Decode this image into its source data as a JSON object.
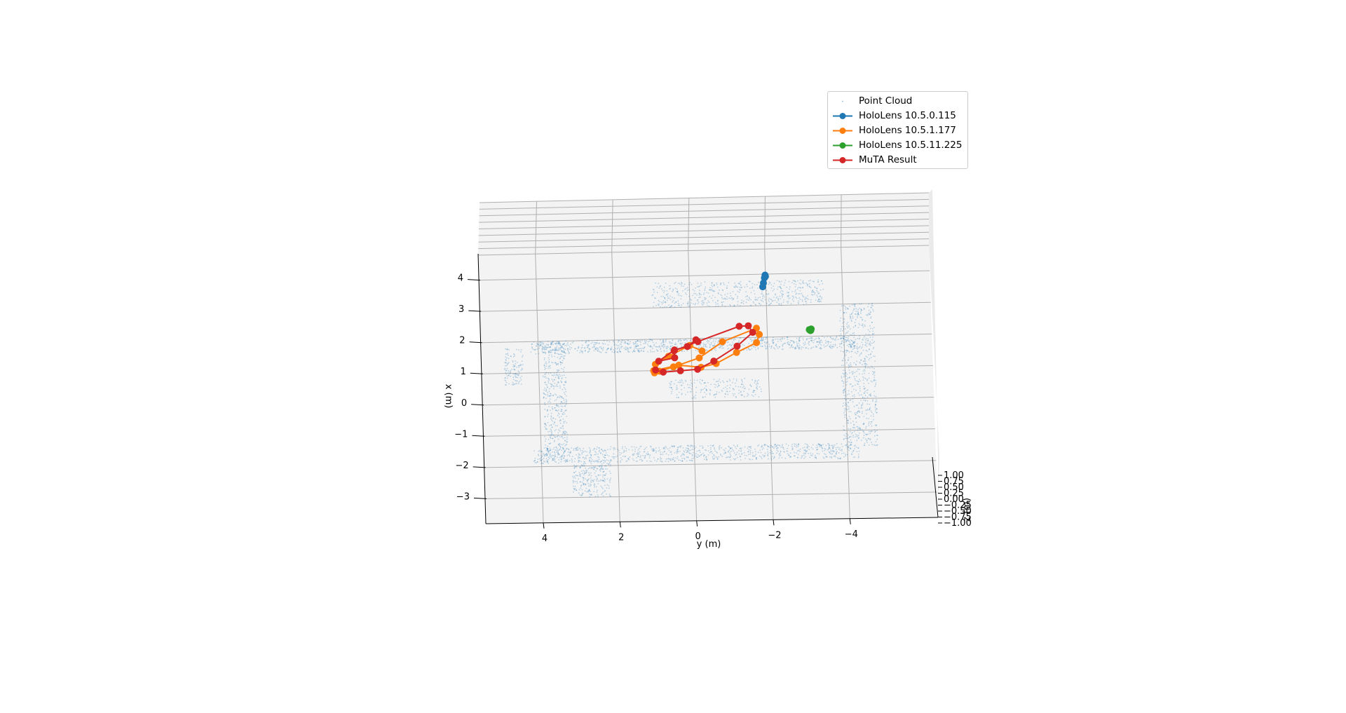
{
  "chart_data": {
    "type": "scatter",
    "projection": "3d",
    "xlabel": "y (m)",
    "ylabel": "x (m)",
    "zlabel": "z (m)",
    "x_ticks": [
      "4",
      "2",
      "0",
      "−2",
      "−4"
    ],
    "y_ticks": [
      "−3",
      "−2",
      "−1",
      "0",
      "1",
      "2",
      "3",
      "4"
    ],
    "z_ticks": [
      "1.00",
      "0.75",
      "0.50",
      "0.25",
      "0.00",
      "−0.25",
      "−0.50",
      "−0.75",
      "−1.00"
    ],
    "xlim": [
      5.5,
      -6.3
    ],
    "ylim": [
      -3.8,
      4.8
    ],
    "zlim": [
      -1.0,
      1.0
    ],
    "grid": true,
    "legend_position": "top-right",
    "series": [
      {
        "name": "Point Cloud",
        "style": "points",
        "color": "#1f77b4",
        "regions": [
          {
            "y_range": [
              -4.3,
              4.2
            ],
            "x_range": [
              1.6,
              2.0
            ],
            "density": 900
          },
          {
            "y_range": [
              -4.3,
              4.2
            ],
            "x_range": [
              -1.9,
              -1.4
            ],
            "density": 900
          },
          {
            "y_range": [
              3.3,
              3.9
            ],
            "x_range": [
              -1.8,
              2.0
            ],
            "density": 450
          },
          {
            "y_range": [
              -4.8,
              -3.9
            ],
            "x_range": [
              -1.5,
              3.0
            ],
            "density": 650
          },
          {
            "y_range": [
              -3.5,
              1.0
            ],
            "x_range": [
              3.0,
              3.8
            ],
            "density": 550
          },
          {
            "y_range": [
              4.4,
              4.9
            ],
            "x_range": [
              0.6,
              1.8
            ],
            "density": 120
          },
          {
            "y_range": [
              2.2,
              3.2
            ],
            "x_range": [
              -3.0,
              -1.8
            ],
            "density": 250
          },
          {
            "y_range": [
              -1.8,
              0.6
            ],
            "x_range": [
              0.1,
              0.7
            ],
            "density": 200
          }
        ]
      },
      {
        "name": "HoloLens 10.5.0.115",
        "style": "line-marker",
        "color": "#1f77b4",
        "points": [
          {
            "y": -1.99,
            "x": 3.97
          },
          {
            "y": -2.0,
            "x": 3.93
          },
          {
            "y": -1.97,
            "x": 3.88
          },
          {
            "y": -1.94,
            "x": 3.72
          },
          {
            "y": -1.92,
            "x": 3.6
          }
        ]
      },
      {
        "name": "HoloLens 10.5.1.177",
        "style": "line-marker",
        "color": "#ff7f0e",
        "points": [
          {
            "y": 0.98,
            "x": 0.93
          },
          {
            "y": 0.85,
            "x": 0.98
          },
          {
            "y": 0.48,
            "x": 1.11
          },
          {
            "y": -0.2,
            "x": 1.38
          },
          {
            "y": -0.82,
            "x": 1.88
          },
          {
            "y": -1.72,
            "x": 2.29
          },
          {
            "y": -1.79,
            "x": 2.09
          },
          {
            "y": -1.71,
            "x": 1.83
          },
          {
            "y": -1.18,
            "x": 1.53
          },
          {
            "y": -0.64,
            "x": 1.19
          },
          {
            "y": -0.24,
            "x": 1.08
          },
          {
            "y": 0.34,
            "x": 1.16
          },
          {
            "y": 1.0,
            "x": 1.0
          },
          {
            "y": 0.95,
            "x": 1.2
          },
          {
            "y": 0.6,
            "x": 1.45
          },
          {
            "y": 0.04,
            "x": 1.78
          },
          {
            "y": -0.28,
            "x": 1.6
          }
        ]
      },
      {
        "name": "HoloLens 10.5.11.225",
        "style": "line-marker",
        "color": "#2ca02c",
        "points": [
          {
            "y": -3.1,
            "x": 2.21
          },
          {
            "y": -3.13,
            "x": 2.18
          },
          {
            "y": -3.15,
            "x": 2.23
          },
          {
            "y": -3.14,
            "x": 2.19
          }
        ]
      },
      {
        "name": "MuTA Result",
        "style": "line-marker",
        "color": "#d62728",
        "points": [
          {
            "y": 0.95,
            "x": 1.02
          },
          {
            "y": 0.75,
            "x": 0.95
          },
          {
            "y": 0.3,
            "x": 0.98
          },
          {
            "y": -0.15,
            "x": 1.02
          },
          {
            "y": -0.58,
            "x": 1.27
          },
          {
            "y": -1.2,
            "x": 1.73
          },
          {
            "y": -1.62,
            "x": 2.16
          },
          {
            "y": -1.51,
            "x": 2.37
          },
          {
            "y": -1.27,
            "x": 2.36
          },
          {
            "y": -0.18,
            "x": 1.9
          },
          {
            "y": 0.45,
            "x": 1.62
          },
          {
            "y": 0.44,
            "x": 1.4
          },
          {
            "y": 0.86,
            "x": 1.3
          },
          {
            "y": 0.44,
            "x": 1.65
          },
          {
            "y": 0.1,
            "x": 1.75
          },
          {
            "y": -0.13,
            "x": 1.96
          }
        ]
      }
    ]
  }
}
